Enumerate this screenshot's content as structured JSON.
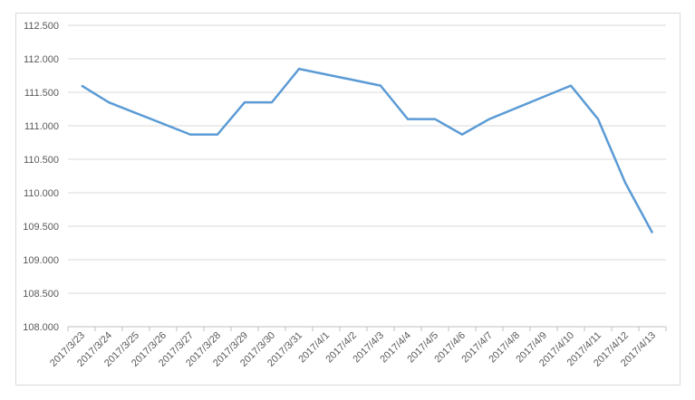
{
  "chart_data": {
    "type": "line",
    "categories": [
      "2017/3/23",
      "2017/3/24",
      "2017/3/25",
      "2017/3/26",
      "2017/3/27",
      "2017/3/28",
      "2017/3/29",
      "2017/3/30",
      "2017/3/31",
      "2017/4/1",
      "2017/4/2",
      "2017/4/3",
      "2017/4/4",
      "2017/4/5",
      "2017/4/6",
      "2017/4/7",
      "2017/4/8",
      "2017/4/9",
      "2017/4/10",
      "2017/4/11",
      "2017/4/12",
      "2017/4/13"
    ],
    "series": [
      {
        "color": "#5b9bd5",
        "x": [
          "2017/3/23",
          "2017/3/24",
          "2017/3/27",
          "2017/3/28",
          "2017/3/29",
          "2017/3/30",
          "2017/3/31",
          "2017/4/3",
          "2017/4/4",
          "2017/4/5",
          "2017/4/6",
          "2017/4/7",
          "2017/4/10",
          "2017/4/11",
          "2017/4/12",
          "2017/4/13"
        ],
        "values": [
          111.6,
          111.35,
          110.87,
          110.87,
          111.35,
          111.35,
          111.85,
          111.6,
          111.1,
          111.1,
          110.87,
          111.1,
          111.6,
          111.1,
          110.15,
          109.4
        ]
      }
    ],
    "ylim": [
      108,
      112.5
    ],
    "yticks": [
      {
        "value": 108,
        "label": "108.000"
      },
      {
        "value": 108.5,
        "label": "108.500"
      },
      {
        "value": 109,
        "label": "109.000"
      },
      {
        "value": 109.5,
        "label": "109.500"
      },
      {
        "value": 110,
        "label": "110.000"
      },
      {
        "value": 110.5,
        "label": "110.500"
      },
      {
        "value": 111,
        "label": "111.000"
      },
      {
        "value": 111.5,
        "label": "111.500"
      },
      {
        "value": 112,
        "label": "112.000"
      },
      {
        "value": 112.5,
        "label": "112.500"
      }
    ],
    "grid": true
  }
}
